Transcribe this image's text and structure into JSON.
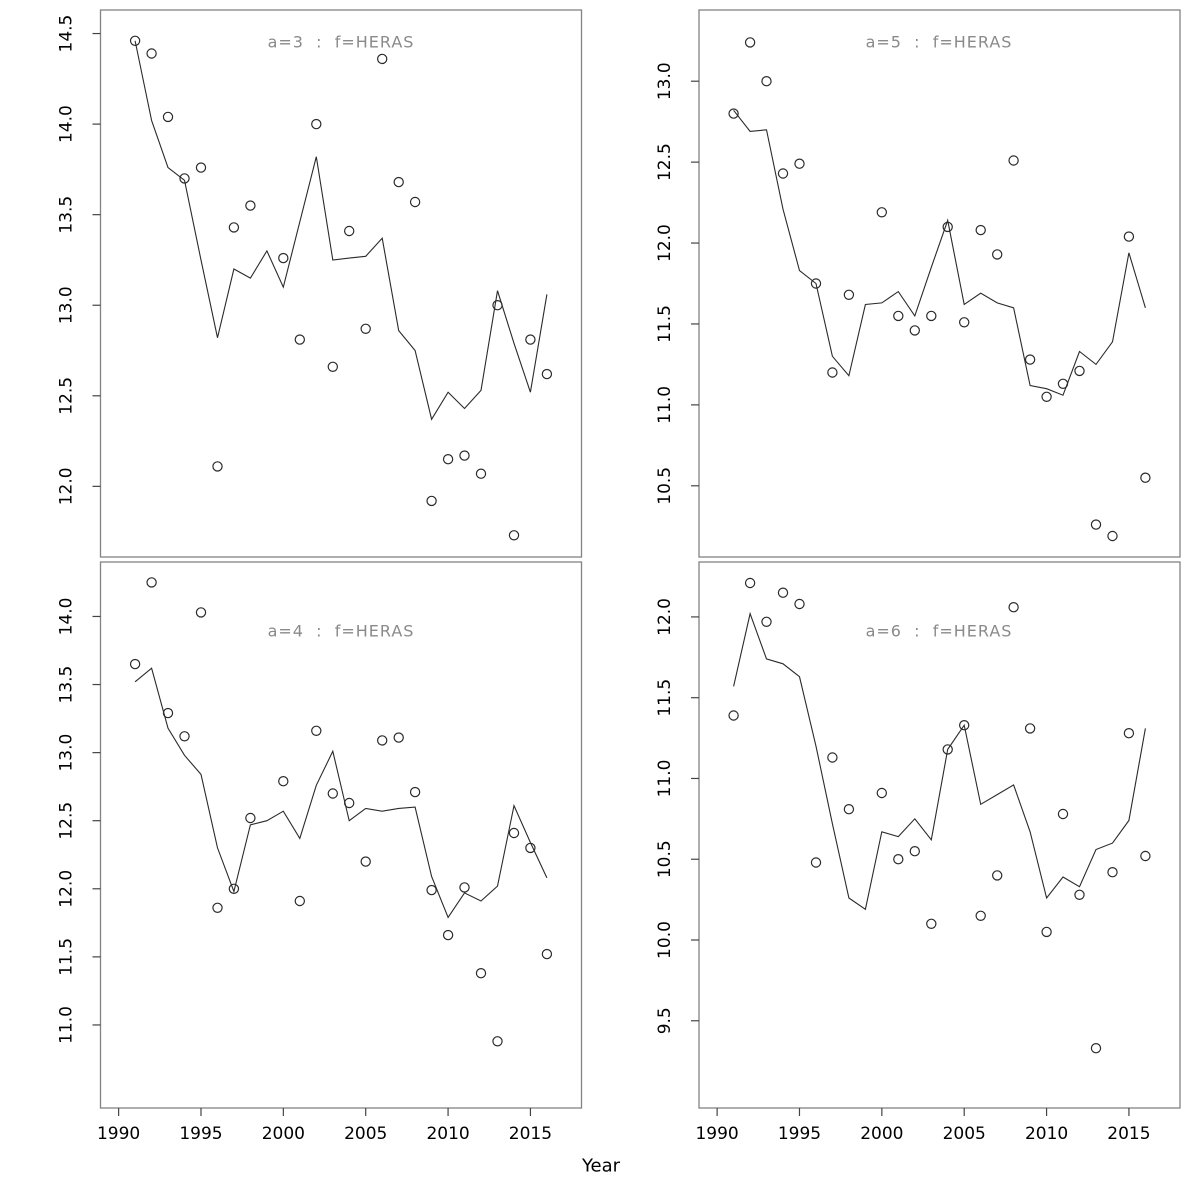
{
  "figure": {
    "background": "#ffffff",
    "description": "2x2 grid of age-indexed survey diagnostic plots: observed index points (circles) and fitted line vs Year"
  },
  "shared": {
    "xlabel": "Year"
  },
  "styles": {
    "panel_border_color": "#838383",
    "data_color": "#2a2a2a",
    "tick_color": "#444444",
    "tick_label_color": "#000000",
    "title_color": "#8a8a8a",
    "background": "#ffffff"
  },
  "chart_data": [
    {
      "id": "a3",
      "type": "line+scatter",
      "title": "a=3  :  f=HERAS",
      "xlabel": "Year",
      "legend": "none",
      "grid": false,
      "xlim": [
        1988.9,
        2018.1
      ],
      "xticks": [
        1990,
        1995,
        2000,
        2005,
        2010,
        2015
      ],
      "ylim": [
        11.61,
        14.63
      ],
      "yticks": [
        12.0,
        12.5,
        13.0,
        13.5,
        14.0,
        14.5
      ],
      "series": [
        {
          "name": "observed",
          "type": "scatter",
          "points": [
            [
              1991,
              14.46
            ],
            [
              1992,
              14.39
            ],
            [
              1993,
              14.04
            ],
            [
              1994,
              13.7
            ],
            [
              1995,
              13.76
            ],
            [
              1996,
              12.11
            ],
            [
              1997,
              13.43
            ],
            [
              1998,
              13.55
            ],
            [
              2000,
              13.26
            ],
            [
              2001,
              12.81
            ],
            [
              2002,
              14.0
            ],
            [
              2003,
              12.66
            ],
            [
              2004,
              13.41
            ],
            [
              2005,
              12.87
            ],
            [
              2006,
              14.36
            ],
            [
              2007,
              13.68
            ],
            [
              2008,
              13.57
            ],
            [
              2009,
              11.92
            ],
            [
              2010,
              12.15
            ],
            [
              2011,
              12.17
            ],
            [
              2012,
              12.07
            ],
            [
              2013,
              13.0
            ],
            [
              2014,
              11.73
            ],
            [
              2015,
              12.81
            ],
            [
              2016,
              12.62
            ]
          ]
        },
        {
          "name": "fitted",
          "type": "line",
          "x": [
            1991,
            1992,
            1993,
            1994,
            1995,
            1996,
            1997,
            1998,
            1999,
            2000,
            2001,
            2002,
            2003,
            2004,
            2005,
            2006,
            2007,
            2008,
            2009,
            2010,
            2011,
            2012,
            2013,
            2014,
            2015,
            2016
          ],
          "y": [
            14.46,
            14.02,
            13.76,
            13.69,
            13.25,
            12.82,
            13.2,
            13.15,
            13.3,
            13.1,
            13.46,
            13.82,
            13.25,
            13.26,
            13.27,
            13.37,
            12.86,
            12.75,
            12.37,
            12.52,
            12.43,
            12.53,
            13.08,
            12.79,
            12.52,
            13.06
          ]
        }
      ]
    },
    {
      "id": "a5",
      "type": "line+scatter",
      "title": "a=5  :  f=HERAS",
      "xlabel": "Year",
      "legend": "none",
      "grid": false,
      "xlim": [
        1988.9,
        2018.1
      ],
      "xticks": [
        1990,
        1995,
        2000,
        2005,
        2010,
        2015
      ],
      "ylim": [
        10.06,
        13.44
      ],
      "yticks": [
        10.5,
        11.0,
        11.5,
        12.0,
        12.5,
        13.0
      ],
      "series": [
        {
          "name": "observed",
          "type": "scatter",
          "points": [
            [
              1991,
              12.8
            ],
            [
              1992,
              13.24
            ],
            [
              1993,
              13.0
            ],
            [
              1994,
              12.43
            ],
            [
              1995,
              12.49
            ],
            [
              1996,
              11.75
            ],
            [
              1997,
              11.2
            ],
            [
              1998,
              11.68
            ],
            [
              2000,
              12.19
            ],
            [
              2001,
              11.55
            ],
            [
              2002,
              11.46
            ],
            [
              2003,
              11.55
            ],
            [
              2004,
              12.1
            ],
            [
              2005,
              11.51
            ],
            [
              2006,
              12.08
            ],
            [
              2007,
              11.93
            ],
            [
              2008,
              12.51
            ],
            [
              2009,
              11.28
            ],
            [
              2010,
              11.05
            ],
            [
              2011,
              11.13
            ],
            [
              2012,
              11.21
            ],
            [
              2013,
              10.26
            ],
            [
              2014,
              10.19
            ],
            [
              2015,
              12.04
            ],
            [
              2016,
              10.55
            ]
          ]
        },
        {
          "name": "fitted",
          "type": "line",
          "x": [
            1991,
            1992,
            1993,
            1994,
            1995,
            1996,
            1997,
            1998,
            1999,
            2000,
            2001,
            2002,
            2003,
            2004,
            2005,
            2006,
            2007,
            2008,
            2009,
            2010,
            2011,
            2012,
            2013,
            2014,
            2015,
            2016
          ],
          "y": [
            12.82,
            12.69,
            12.7,
            12.21,
            11.83,
            11.75,
            11.3,
            11.18,
            11.62,
            11.63,
            11.7,
            11.55,
            11.85,
            12.14,
            11.62,
            11.69,
            11.63,
            11.6,
            11.12,
            11.1,
            11.06,
            11.33,
            11.25,
            11.39,
            11.94,
            11.6
          ]
        }
      ]
    },
    {
      "id": "a4",
      "type": "line+scatter",
      "title": "a=4  :  f=HERAS",
      "xlabel": "Year",
      "legend": "none",
      "grid": false,
      "xlim": [
        1988.9,
        2018.1
      ],
      "xticks": [
        1990,
        1995,
        2000,
        2005,
        2010,
        2015
      ],
      "ylim": [
        10.39,
        14.4
      ],
      "yticks": [
        11.0,
        11.5,
        12.0,
        12.5,
        13.0,
        13.5,
        14.0
      ],
      "series": [
        {
          "name": "observed",
          "type": "scatter",
          "points": [
            [
              1991,
              13.65
            ],
            [
              1992,
              14.25
            ],
            [
              1993,
              13.29
            ],
            [
              1994,
              13.12
            ],
            [
              1995,
              14.03
            ],
            [
              1996,
              11.86
            ],
            [
              1997,
              12.0
            ],
            [
              1998,
              12.52
            ],
            [
              2000,
              12.79
            ],
            [
              2001,
              11.91
            ],
            [
              2002,
              13.16
            ],
            [
              2003,
              12.7
            ],
            [
              2004,
              12.63
            ],
            [
              2005,
              12.2
            ],
            [
              2006,
              13.09
            ],
            [
              2007,
              13.11
            ],
            [
              2008,
              12.71
            ],
            [
              2009,
              11.99
            ],
            [
              2010,
              11.66
            ],
            [
              2011,
              12.01
            ],
            [
              2012,
              11.38
            ],
            [
              2013,
              10.88
            ],
            [
              2014,
              12.41
            ],
            [
              2015,
              12.3
            ],
            [
              2016,
              11.52
            ]
          ]
        },
        {
          "name": "fitted",
          "type": "line",
          "x": [
            1991,
            1992,
            1993,
            1994,
            1995,
            1996,
            1997,
            1998,
            1999,
            2000,
            2001,
            2002,
            2003,
            2004,
            2005,
            2006,
            2007,
            2008,
            2009,
            2010,
            2011,
            2012,
            2013,
            2014,
            2015,
            2016
          ],
          "y": [
            13.52,
            13.62,
            13.18,
            12.98,
            12.84,
            12.3,
            11.98,
            12.47,
            12.5,
            12.57,
            12.37,
            12.76,
            13.01,
            12.5,
            12.59,
            12.57,
            12.59,
            12.6,
            12.09,
            11.79,
            11.97,
            11.91,
            12.02,
            12.61,
            12.34,
            12.08
          ]
        }
      ]
    },
    {
      "id": "a6",
      "type": "line+scatter",
      "title": "a=6  :  f=HERAS",
      "xlabel": "Year",
      "legend": "none",
      "grid": false,
      "xlim": [
        1988.9,
        2018.1
      ],
      "xticks": [
        1990,
        1995,
        2000,
        2005,
        2010,
        2015
      ],
      "ylim": [
        8.96,
        12.34
      ],
      "yticks": [
        9.5,
        10.0,
        10.5,
        11.0,
        11.5,
        12.0
      ],
      "series": [
        {
          "name": "observed",
          "type": "scatter",
          "points": [
            [
              1991,
              11.39
            ],
            [
              1992,
              12.21
            ],
            [
              1993,
              11.97
            ],
            [
              1994,
              12.15
            ],
            [
              1995,
              12.08
            ],
            [
              1996,
              10.48
            ],
            [
              1997,
              11.13
            ],
            [
              1998,
              10.81
            ],
            [
              2000,
              10.91
            ],
            [
              2001,
              10.5
            ],
            [
              2002,
              10.55
            ],
            [
              2003,
              10.1
            ],
            [
              2004,
              11.18
            ],
            [
              2005,
              11.33
            ],
            [
              2006,
              10.15
            ],
            [
              2007,
              10.4
            ],
            [
              2008,
              12.06
            ],
            [
              2009,
              11.31
            ],
            [
              2010,
              10.05
            ],
            [
              2011,
              10.78
            ],
            [
              2012,
              10.28
            ],
            [
              2013,
              9.33
            ],
            [
              2014,
              10.42
            ],
            [
              2015,
              11.28
            ],
            [
              2016,
              10.52
            ]
          ]
        },
        {
          "name": "fitted",
          "type": "line",
          "x": [
            1991,
            1992,
            1993,
            1994,
            1995,
            1996,
            1997,
            1998,
            1999,
            2000,
            2001,
            2002,
            2003,
            2004,
            2005,
            2006,
            2007,
            2008,
            2009,
            2010,
            2011,
            2012,
            2013,
            2014,
            2015,
            2016
          ],
          "y": [
            11.57,
            12.02,
            11.74,
            11.71,
            11.63,
            11.2,
            10.72,
            10.26,
            10.19,
            10.67,
            10.64,
            10.75,
            10.62,
            11.18,
            11.33,
            10.84,
            10.9,
            10.96,
            10.67,
            10.26,
            10.39,
            10.33,
            10.56,
            10.6,
            10.74,
            11.31
          ]
        }
      ]
    }
  ]
}
